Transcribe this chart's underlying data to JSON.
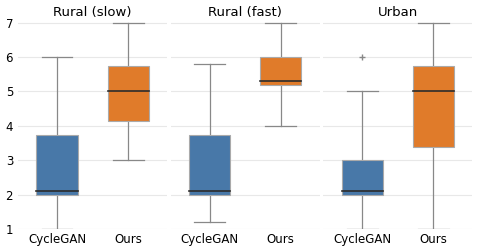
{
  "subplots": [
    {
      "title": "Rural (slow)",
      "cyclegan": {
        "q1": 2.0,
        "median": 2.1,
        "q3": 3.75,
        "whislo": 1.0,
        "whishi": 6.0,
        "fliers": []
      },
      "ours": {
        "q1": 4.15,
        "median": 5.0,
        "q3": 5.75,
        "whislo": 3.0,
        "whishi": 7.0,
        "fliers": []
      }
    },
    {
      "title": "Rural (fast)",
      "cyclegan": {
        "q1": 2.0,
        "median": 2.1,
        "q3": 3.75,
        "whislo": 1.2,
        "whishi": 5.8,
        "fliers": []
      },
      "ours": {
        "q1": 5.2,
        "median": 5.3,
        "q3": 6.0,
        "whislo": 4.0,
        "whishi": 7.0,
        "fliers": []
      }
    },
    {
      "title": "Urban",
      "cyclegan": {
        "q1": 2.0,
        "median": 2.1,
        "q3": 3.0,
        "whislo": 1.0,
        "whishi": 5.0,
        "fliers": [
          6.0
        ]
      },
      "ours": {
        "q1": 3.4,
        "median": 5.0,
        "q3": 5.75,
        "whislo": 1.0,
        "whishi": 7.0,
        "fliers": []
      }
    }
  ],
  "ylim": [
    1,
    7
  ],
  "yticks": [
    1,
    2,
    3,
    4,
    5,
    6,
    7
  ],
  "cyclegan_color": "#4878a8",
  "ours_color": "#e07b2a",
  "median_color": "#2c2c2c",
  "whisker_color": "#888888",
  "box_edge_color": "#aaaaaa",
  "background_color": "#ffffff",
  "grid_color": "#e8e8e8",
  "xlabel_cyclegan": "CycleGAN",
  "xlabel_ours": "Ours",
  "figsize": [
    4.78,
    2.52
  ],
  "dpi": 100
}
